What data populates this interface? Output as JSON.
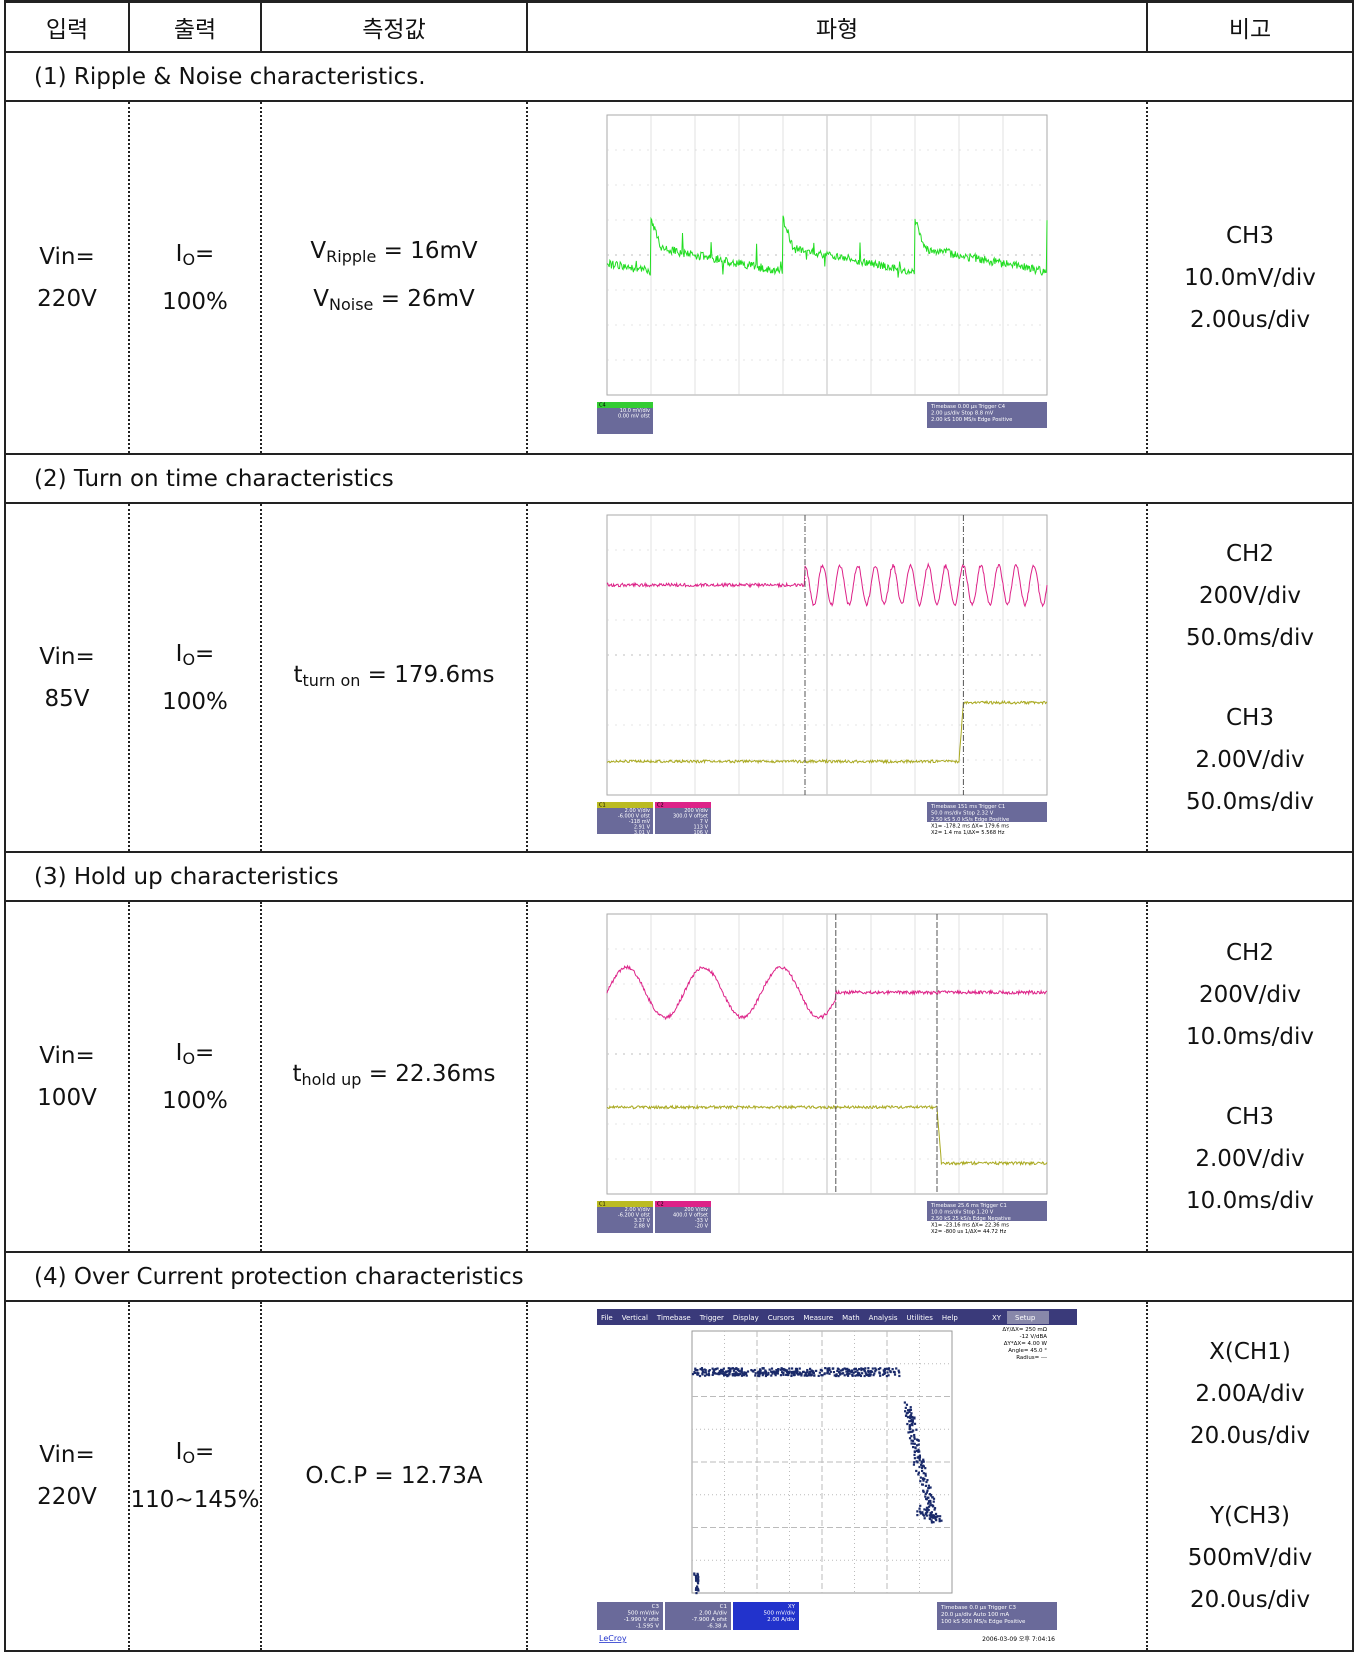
{
  "header": {
    "columns": [
      "입력",
      "출력",
      "측정값",
      "파형",
      "비고"
    ]
  },
  "sections": [
    {
      "title": "(1) Ripple & Noise characteristics.",
      "input": [
        "Vin=",
        "220V"
      ],
      "output": {
        "main": "I",
        "sub": "O",
        "rest": "=",
        "value": "100%"
      },
      "measurements": [
        {
          "main": "V",
          "sub": "Ripple",
          "rest": " = 16mV"
        },
        {
          "main": "V",
          "sub": "Noise",
          "rest": " = 26mV"
        }
      ],
      "notes": [
        "CH3",
        "10.0mV/div",
        "2.00us/div"
      ],
      "scope": {
        "left": [
          [
            "C4",
            "10.0 mV/div",
            "0.00 mV ofst"
          ]
        ],
        "right": [
          "Timebase 0.00 µs  Trigger C4",
          "2.00 µs/div  Stop 8.8 mV",
          "2.00 kS 100 MS/s  Edge Positive"
        ]
      }
    },
    {
      "title": "(2) Turn on time characteristics",
      "input": [
        "Vin=",
        "85V"
      ],
      "output": {
        "main": "I",
        "sub": "O",
        "rest": "=",
        "value": "100%"
      },
      "measurements": [
        {
          "main": "t",
          "sub": "turn on",
          "rest": " = 179.6ms"
        }
      ],
      "notes": [
        "CH2",
        "200V/div",
        "50.0ms/div",
        "CH3",
        "2.00V/div",
        "50.0ms/div"
      ],
      "scope": {
        "left": [
          [
            "C1",
            "2.00 V/div",
            "-6.000 V ofst",
            "-118 mV",
            "2.91 V",
            "3.01 V"
          ],
          [
            "C2",
            "200 V/div",
            "300.0 V offset",
            "7 V",
            "113 V",
            "106 V"
          ]
        ],
        "right": [
          "Timebase 151 ms  Trigger C1",
          "50.0 ms/div  Stop 2.32 V",
          "2.50 kS 5.0 kS/s  Edge Positive",
          "X1= -178.2 ms  ΔX= 179.6 ms",
          "X2= 1.4 ms  1/ΔX= 5.568 Hz"
        ]
      }
    },
    {
      "title": "(3) Hold up characteristics",
      "input": [
        "Vin=",
        "100V"
      ],
      "output": {
        "main": "I",
        "sub": "O",
        "rest": "=",
        "value": "100%"
      },
      "measurements": [
        {
          "main": "t",
          "sub": "hold up",
          "rest": " = 22.36ms"
        }
      ],
      "notes": [
        "CH2",
        "200V/div",
        "10.0ms/div",
        "CH3",
        "2.00V/div",
        "10.0ms/div"
      ],
      "scope": {
        "left": [
          [
            "C1",
            "2.00 V/div",
            "-6.200 V ofst",
            "3.37 V",
            "2.88 V"
          ],
          [
            "C2",
            "200 V/div",
            "400.0 V offset",
            "-33 V",
            "-20 V"
          ]
        ],
        "right": [
          "Timebase 25.6 ms  Trigger C1",
          "10.0 ms/div  Stop 1.20 V",
          "2.50 kS 25 kS/s  Edge Negative",
          "X1= -23.16 ms  ΔX= 22.36 ms",
          "X2= -800 us  1/ΔX= 44.72 Hz"
        ]
      }
    },
    {
      "title": "(4) Over Current protection characteristics",
      "input": [
        "Vin=",
        "220V"
      ],
      "output": {
        "main": "I",
        "sub": "O",
        "rest": "=",
        "value": "110~145%"
      },
      "measurements": [
        {
          "main": "O.C.P = 12.73A"
        }
      ],
      "notes": [
        "X(CH1)",
        "2.00A/div",
        "20.0us/div",
        "Y(CH3)",
        "500mV/div",
        "20.0us/div"
      ],
      "scope": {
        "menu": [
          "File",
          "Vertical",
          "Timebase",
          "Trigger",
          "Display",
          "Cursors",
          "Measure",
          "Math",
          "Analysis",
          "Utilities",
          "Help"
        ],
        "xy": "XY",
        "setup": "Setup",
        "readout": [
          "ΔY/ΔX= 250 mΩ",
          "-12 V/dBA",
          "ΔY*ΔX= 4.00 W",
          "Angle= 45.0 °",
          "Radius= ---"
        ],
        "left": [
          [
            "C3",
            "500 mV/div",
            "-1.990 V ofst",
            "-1.595 V"
          ],
          [
            "C1",
            "2.00 A/div",
            "-7.900 A ofst",
            "-6.38 A"
          ],
          [
            "XY",
            "500 mV/div",
            "2.00 A/div"
          ]
        ],
        "right": [
          "Timebase 0.0 µs  Trigger C3",
          "20.0 µs/div  Auto 100 mA",
          "100 kS 500 MS/s  Edge Positive"
        ],
        "brand": "LeCroy",
        "stamp": "2006-03-09 오후 7:04:16"
      }
    }
  ]
}
